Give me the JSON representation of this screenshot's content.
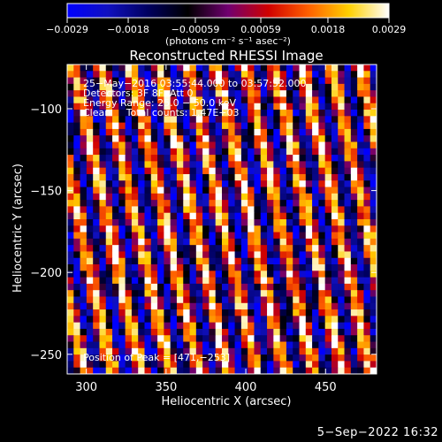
{
  "chart_data": {
    "type": "heatmap",
    "title": "Reconstructed RHESSI Image",
    "xlabel": "Heliocentric X (arcsec)",
    "ylabel": "Heliocentric Y (arcsec)",
    "xlim": [
      288,
      482
    ],
    "ylim": [
      -262,
      -73
    ],
    "xticks": [
      300,
      350,
      400,
      450
    ],
    "xtick_labels": [
      "300",
      "350",
      "400",
      "450"
    ],
    "yticks": [
      -100,
      -150,
      -200,
      -250
    ],
    "ytick_labels": [
      "−100",
      "−150",
      "−200",
      "−250"
    ],
    "colorbar": {
      "range": [
        -0.0029,
        0.0029
      ],
      "ticks": [
        -0.0029,
        -0.0018,
        -0.00059,
        0.00059,
        0.0018,
        0.0029
      ],
      "tick_labels": [
        "−0.0029",
        "−0.0018",
        "−0.00059",
        "0.00059",
        "0.0018",
        "0.0029"
      ],
      "unit_label": "(photons cm⁻² s⁻¹ asec⁻²)",
      "colormap": [
        "#0000ff",
        "#1010c0",
        "#000060",
        "#000000",
        "#700070",
        "#d00000",
        "#ff6000",
        "#ffd000",
        "#ffffff"
      ]
    },
    "annotations": [
      "25−May−2016 03:55:44.000 to 03:57:52.000",
      "Detectors: 3F 8F, Att 0",
      "Energy Range: 25.0 − 50.0 keV",
      "Clean     Total counts: 1.47E+03",
      "Position of Peak = [471,−253]"
    ],
    "peak_position": [
      471,
      -253
    ],
    "pattern": {
      "description_free": true,
      "x_cells": 48,
      "y_cells": 48,
      "stripe_period_arcsec": 18,
      "stripe_slope": 0.23
    }
  },
  "footer": {
    "date": "5−Sep−2022 16:32"
  },
  "colors": {
    "background": "#000000",
    "foreground": "#ffffff"
  }
}
